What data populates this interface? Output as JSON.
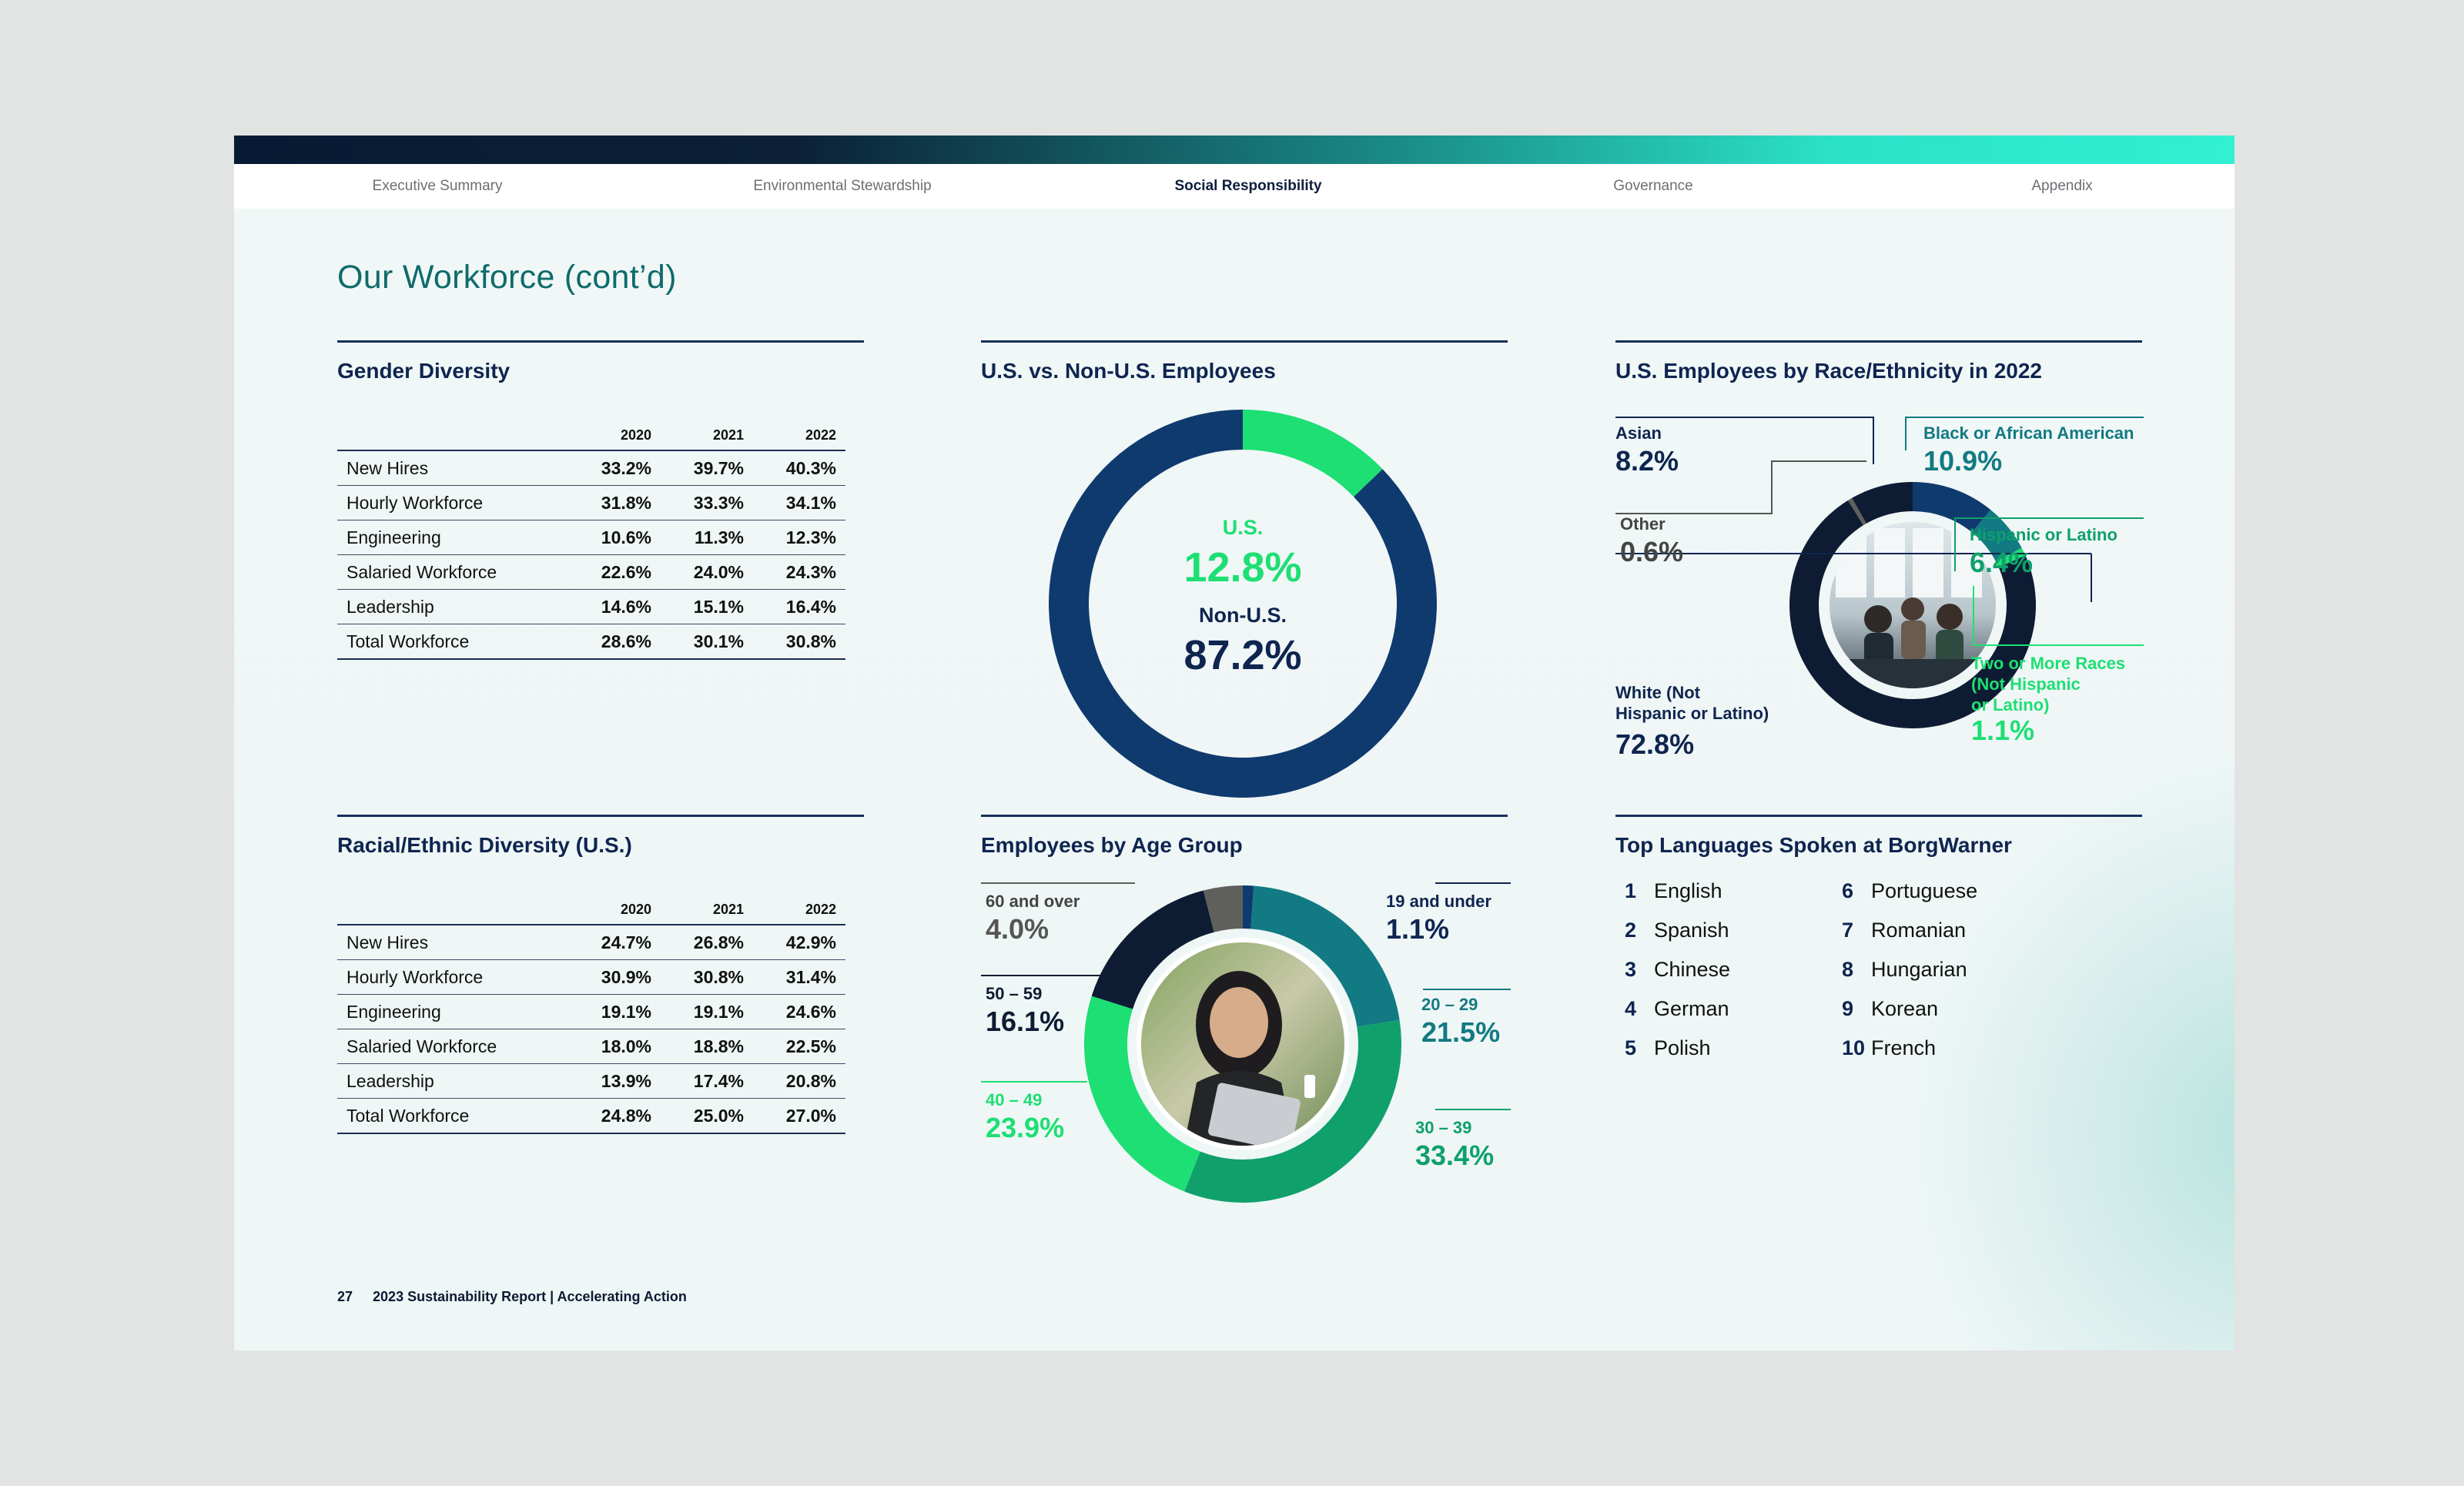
{
  "nav": {
    "items": [
      {
        "label": "Executive Summary",
        "active": false
      },
      {
        "label": "Environmental Stewardship",
        "active": false
      },
      {
        "label": "Social Responsibility",
        "active": true
      },
      {
        "label": "Governance",
        "active": false
      },
      {
        "label": "Appendix",
        "active": false
      }
    ]
  },
  "page": {
    "title": "Our Workforce (cont’d)"
  },
  "gender": {
    "title": "Gender Diversity",
    "years": [
      "2020",
      "2021",
      "2022"
    ],
    "rows": [
      {
        "label": "New Hires",
        "values": [
          "33.2%",
          "39.7%",
          "40.3%"
        ]
      },
      {
        "label": "Hourly Workforce",
        "values": [
          "31.8%",
          "33.3%",
          "34.1%"
        ]
      },
      {
        "label": "Engineering",
        "values": [
          "10.6%",
          "11.3%",
          "12.3%"
        ]
      },
      {
        "label": "Salaried Workforce",
        "values": [
          "22.6%",
          "24.0%",
          "24.3%"
        ]
      },
      {
        "label": "Leadership",
        "values": [
          "14.6%",
          "15.1%",
          "16.4%"
        ]
      },
      {
        "label": "Total Workforce",
        "values": [
          "28.6%",
          "30.1%",
          "30.8%"
        ]
      }
    ]
  },
  "racial": {
    "title": "Racial/Ethnic Diversity (U.S.)",
    "years": [
      "2020",
      "2021",
      "2022"
    ],
    "rows": [
      {
        "label": "New Hires",
        "values": [
          "24.7%",
          "26.8%",
          "42.9%"
        ]
      },
      {
        "label": "Hourly Workforce",
        "values": [
          "30.9%",
          "30.8%",
          "31.4%"
        ]
      },
      {
        "label": "Engineering",
        "values": [
          "19.1%",
          "19.1%",
          "24.6%"
        ]
      },
      {
        "label": "Salaried Workforce",
        "values": [
          "18.0%",
          "18.8%",
          "22.5%"
        ]
      },
      {
        "label": "Leadership",
        "values": [
          "13.9%",
          "17.4%",
          "20.8%"
        ]
      },
      {
        "label": "Total Workforce",
        "values": [
          "24.8%",
          "25.0%",
          "27.0%"
        ]
      }
    ]
  },
  "us_split": {
    "title": "U.S. vs. Non-U.S. Employees",
    "us_label": "U.S.",
    "us_value": "12.8%",
    "nonus_label": "Non-U.S.",
    "nonus_value": "87.2%"
  },
  "race": {
    "title": "U.S. Employees by Race/Ethnicity in 2022",
    "asian": {
      "label": "Asian",
      "value": "8.2%"
    },
    "other": {
      "label": "Other",
      "value": "0.6%"
    },
    "black": {
      "label": "Black or African American",
      "value": "10.9%"
    },
    "hispanic": {
      "label": "Hispanic or Latino",
      "value": "6.4%"
    },
    "two": {
      "label1": "Two or More Races",
      "label2": "(Not Hispanic",
      "label3": "or Latino)",
      "value": "1.1%"
    },
    "white": {
      "label1": "White (Not",
      "label2": "Hispanic or Latino)",
      "value": "72.8%"
    }
  },
  "age": {
    "title": "Employees by Age Group",
    "g60": {
      "label": "60 and over",
      "value": "4.0%"
    },
    "g19": {
      "label": "19 and under",
      "value": "1.1%"
    },
    "g50": {
      "label": "50 – 59",
      "value": "16.1%"
    },
    "g20": {
      "label": "20 – 29",
      "value": "21.5%"
    },
    "g40": {
      "label": "40 – 49",
      "value": "23.9%"
    },
    "g30": {
      "label": "30 – 39",
      "value": "33.4%"
    }
  },
  "languages": {
    "title": "Top Languages Spoken at BorgWarner",
    "items": [
      {
        "num": "1",
        "name": "English"
      },
      {
        "num": "2",
        "name": "Spanish"
      },
      {
        "num": "3",
        "name": "Chinese"
      },
      {
        "num": "4",
        "name": "German"
      },
      {
        "num": "5",
        "name": "Polish"
      },
      {
        "num": "6",
        "name": "Portuguese"
      },
      {
        "num": "7",
        "name": "Romanian"
      },
      {
        "num": "8",
        "name": "Hungarian"
      },
      {
        "num": "9",
        "name": "Korean"
      },
      {
        "num": "10",
        "name": "French"
      }
    ]
  },
  "footer": {
    "page": "27",
    "text": "2023 Sustainability Report | Accelerating Action"
  },
  "colors": {
    "navy": "#0f3a6e",
    "dark_navy": "#0d1c33",
    "bright_green": "#1ddf73",
    "teal": "#127a82",
    "mid_green": "#0fa06c",
    "gray": "#5f5f5b"
  },
  "chart_data": [
    {
      "type": "pie",
      "title": "U.S. vs. Non-U.S. Employees",
      "categories": [
        "U.S.",
        "Non-U.S."
      ],
      "values": [
        12.8,
        87.2
      ]
    },
    {
      "type": "pie",
      "title": "U.S. Employees by Race/Ethnicity in 2022",
      "categories": [
        "Black or African American",
        "Hispanic or Latino",
        "Two or More Races (Not Hispanic or Latino)",
        "White (Not Hispanic or Latino)",
        "Other",
        "Asian"
      ],
      "values": [
        10.9,
        6.4,
        1.1,
        72.8,
        0.6,
        8.2
      ]
    },
    {
      "type": "pie",
      "title": "Employees by Age Group",
      "categories": [
        "19 and under",
        "20 – 29",
        "30 – 39",
        "40 – 49",
        "50 – 59",
        "60 and over"
      ],
      "values": [
        1.1,
        21.5,
        33.4,
        23.9,
        16.1,
        4.0
      ]
    }
  ]
}
